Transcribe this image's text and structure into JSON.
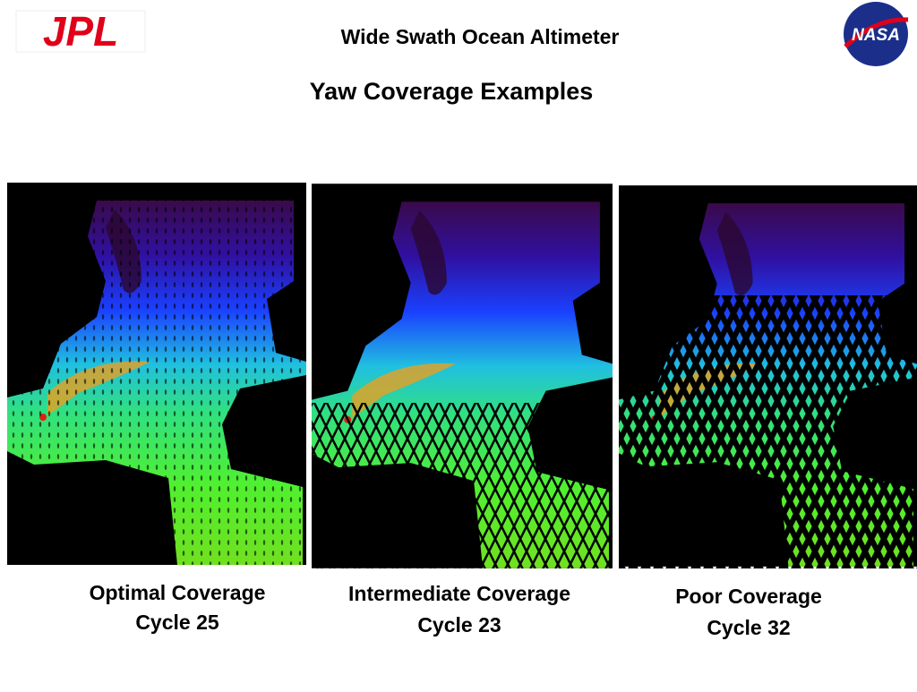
{
  "header": {
    "title": "Wide Swath Ocean Altimeter",
    "subtitle": "Yaw Coverage Examples",
    "left_logo": "JPL",
    "right_logo": "NASA"
  },
  "panels": [
    {
      "caption": [
        "Optimal Coverage",
        "Cycle 25"
      ]
    },
    {
      "caption": [
        "Intermediate Coverage",
        "Cycle 23"
      ]
    },
    {
      "caption": [
        "Poor Coverage",
        "Cycle 32"
      ]
    }
  ]
}
